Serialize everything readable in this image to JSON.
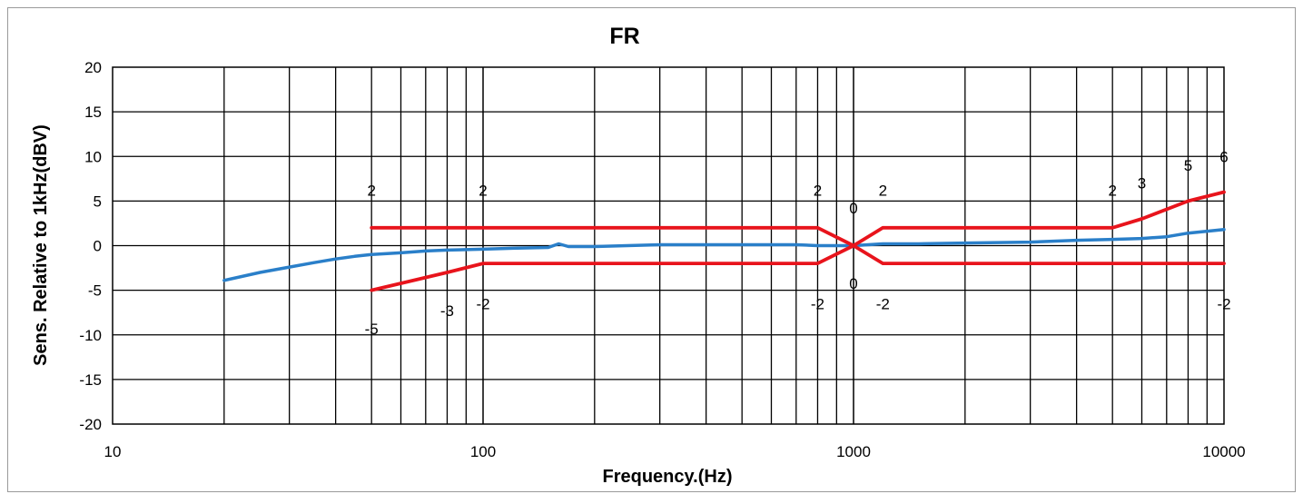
{
  "chart_data": {
    "type": "line",
    "title": "FR",
    "xlabel": "Frequency.(Hz)",
    "ylabel": "Sens. Relative to 1kHz(dBV)",
    "x_scale": "log",
    "xlim": [
      10,
      10000
    ],
    "ylim": [
      -20,
      20
    ],
    "x_ticks": [
      10,
      100,
      1000,
      10000
    ],
    "x_tick_labels": [
      "10",
      "100",
      "1000",
      "10000"
    ],
    "y_ticks": [
      20,
      15,
      10,
      5,
      0,
      -5,
      -10,
      -15,
      -20
    ],
    "y_tick_labels": [
      "20",
      "15",
      "10",
      "5",
      "0",
      "-5",
      "-10",
      "-15",
      "-20"
    ],
    "grid": true,
    "legend": "none",
    "colors": {
      "response": "#2a7fc9",
      "limits": "#e8141c"
    },
    "series": [
      {
        "key": "response",
        "color": "#2a7fc9",
        "x": [
          20,
          25,
          30,
          35,
          40,
          45,
          50,
          60,
          70,
          80,
          100,
          120,
          150,
          160,
          170,
          200,
          300,
          400,
          500,
          700,
          800,
          900,
          1000,
          1200,
          1500,
          2000,
          3000,
          4000,
          5000,
          6000,
          7000,
          8000,
          10000
        ],
        "y": [
          -3.9,
          -3.0,
          -2.4,
          -1.9,
          -1.5,
          -1.2,
          -1.0,
          -0.8,
          -0.6,
          -0.5,
          -0.4,
          -0.3,
          -0.2,
          0.2,
          -0.1,
          -0.1,
          0.1,
          0.1,
          0.1,
          0.1,
          0.0,
          0.0,
          0.0,
          0.2,
          0.2,
          0.3,
          0.4,
          0.6,
          0.7,
          0.8,
          1.0,
          1.4,
          1.8
        ]
      },
      {
        "key": "upper-limit",
        "color": "#e8141c",
        "x": [
          50,
          100,
          800,
          1000,
          1200,
          5000,
          6000,
          8000,
          10000
        ],
        "y": [
          2,
          2,
          2,
          0,
          2,
          2,
          3,
          5,
          6
        ]
      },
      {
        "key": "lower-limit",
        "color": "#e8141c",
        "x": [
          50,
          80,
          100,
          800,
          1000,
          1200,
          10000
        ],
        "y": [
          -5,
          -3,
          -2,
          -2,
          0,
          -2,
          -2
        ]
      }
    ],
    "annotations": [
      {
        "text": "2",
        "x": 50,
        "y": 6.2
      },
      {
        "text": "2",
        "x": 100,
        "y": 6.2
      },
      {
        "text": "2",
        "x": 800,
        "y": 6.2
      },
      {
        "text": "0",
        "x": 1000,
        "y": 4.2
      },
      {
        "text": "2",
        "x": 1200,
        "y": 6.2
      },
      {
        "text": "2",
        "x": 5000,
        "y": 6.2
      },
      {
        "text": "3",
        "x": 6000,
        "y": 7.0
      },
      {
        "text": "5",
        "x": 8000,
        "y": 9.0
      },
      {
        "text": "6",
        "x": 10000,
        "y": 10.0
      },
      {
        "text": "-5",
        "x": 50,
        "y": -9.3
      },
      {
        "text": "-3",
        "x": 80,
        "y": -7.3
      },
      {
        "text": "-2",
        "x": 100,
        "y": -6.5
      },
      {
        "text": "-2",
        "x": 800,
        "y": -6.5
      },
      {
        "text": "0",
        "x": 1000,
        "y": -4.2
      },
      {
        "text": "-2",
        "x": 1200,
        "y": -6.5
      },
      {
        "text": "-2",
        "x": 10000,
        "y": -6.5
      }
    ]
  }
}
